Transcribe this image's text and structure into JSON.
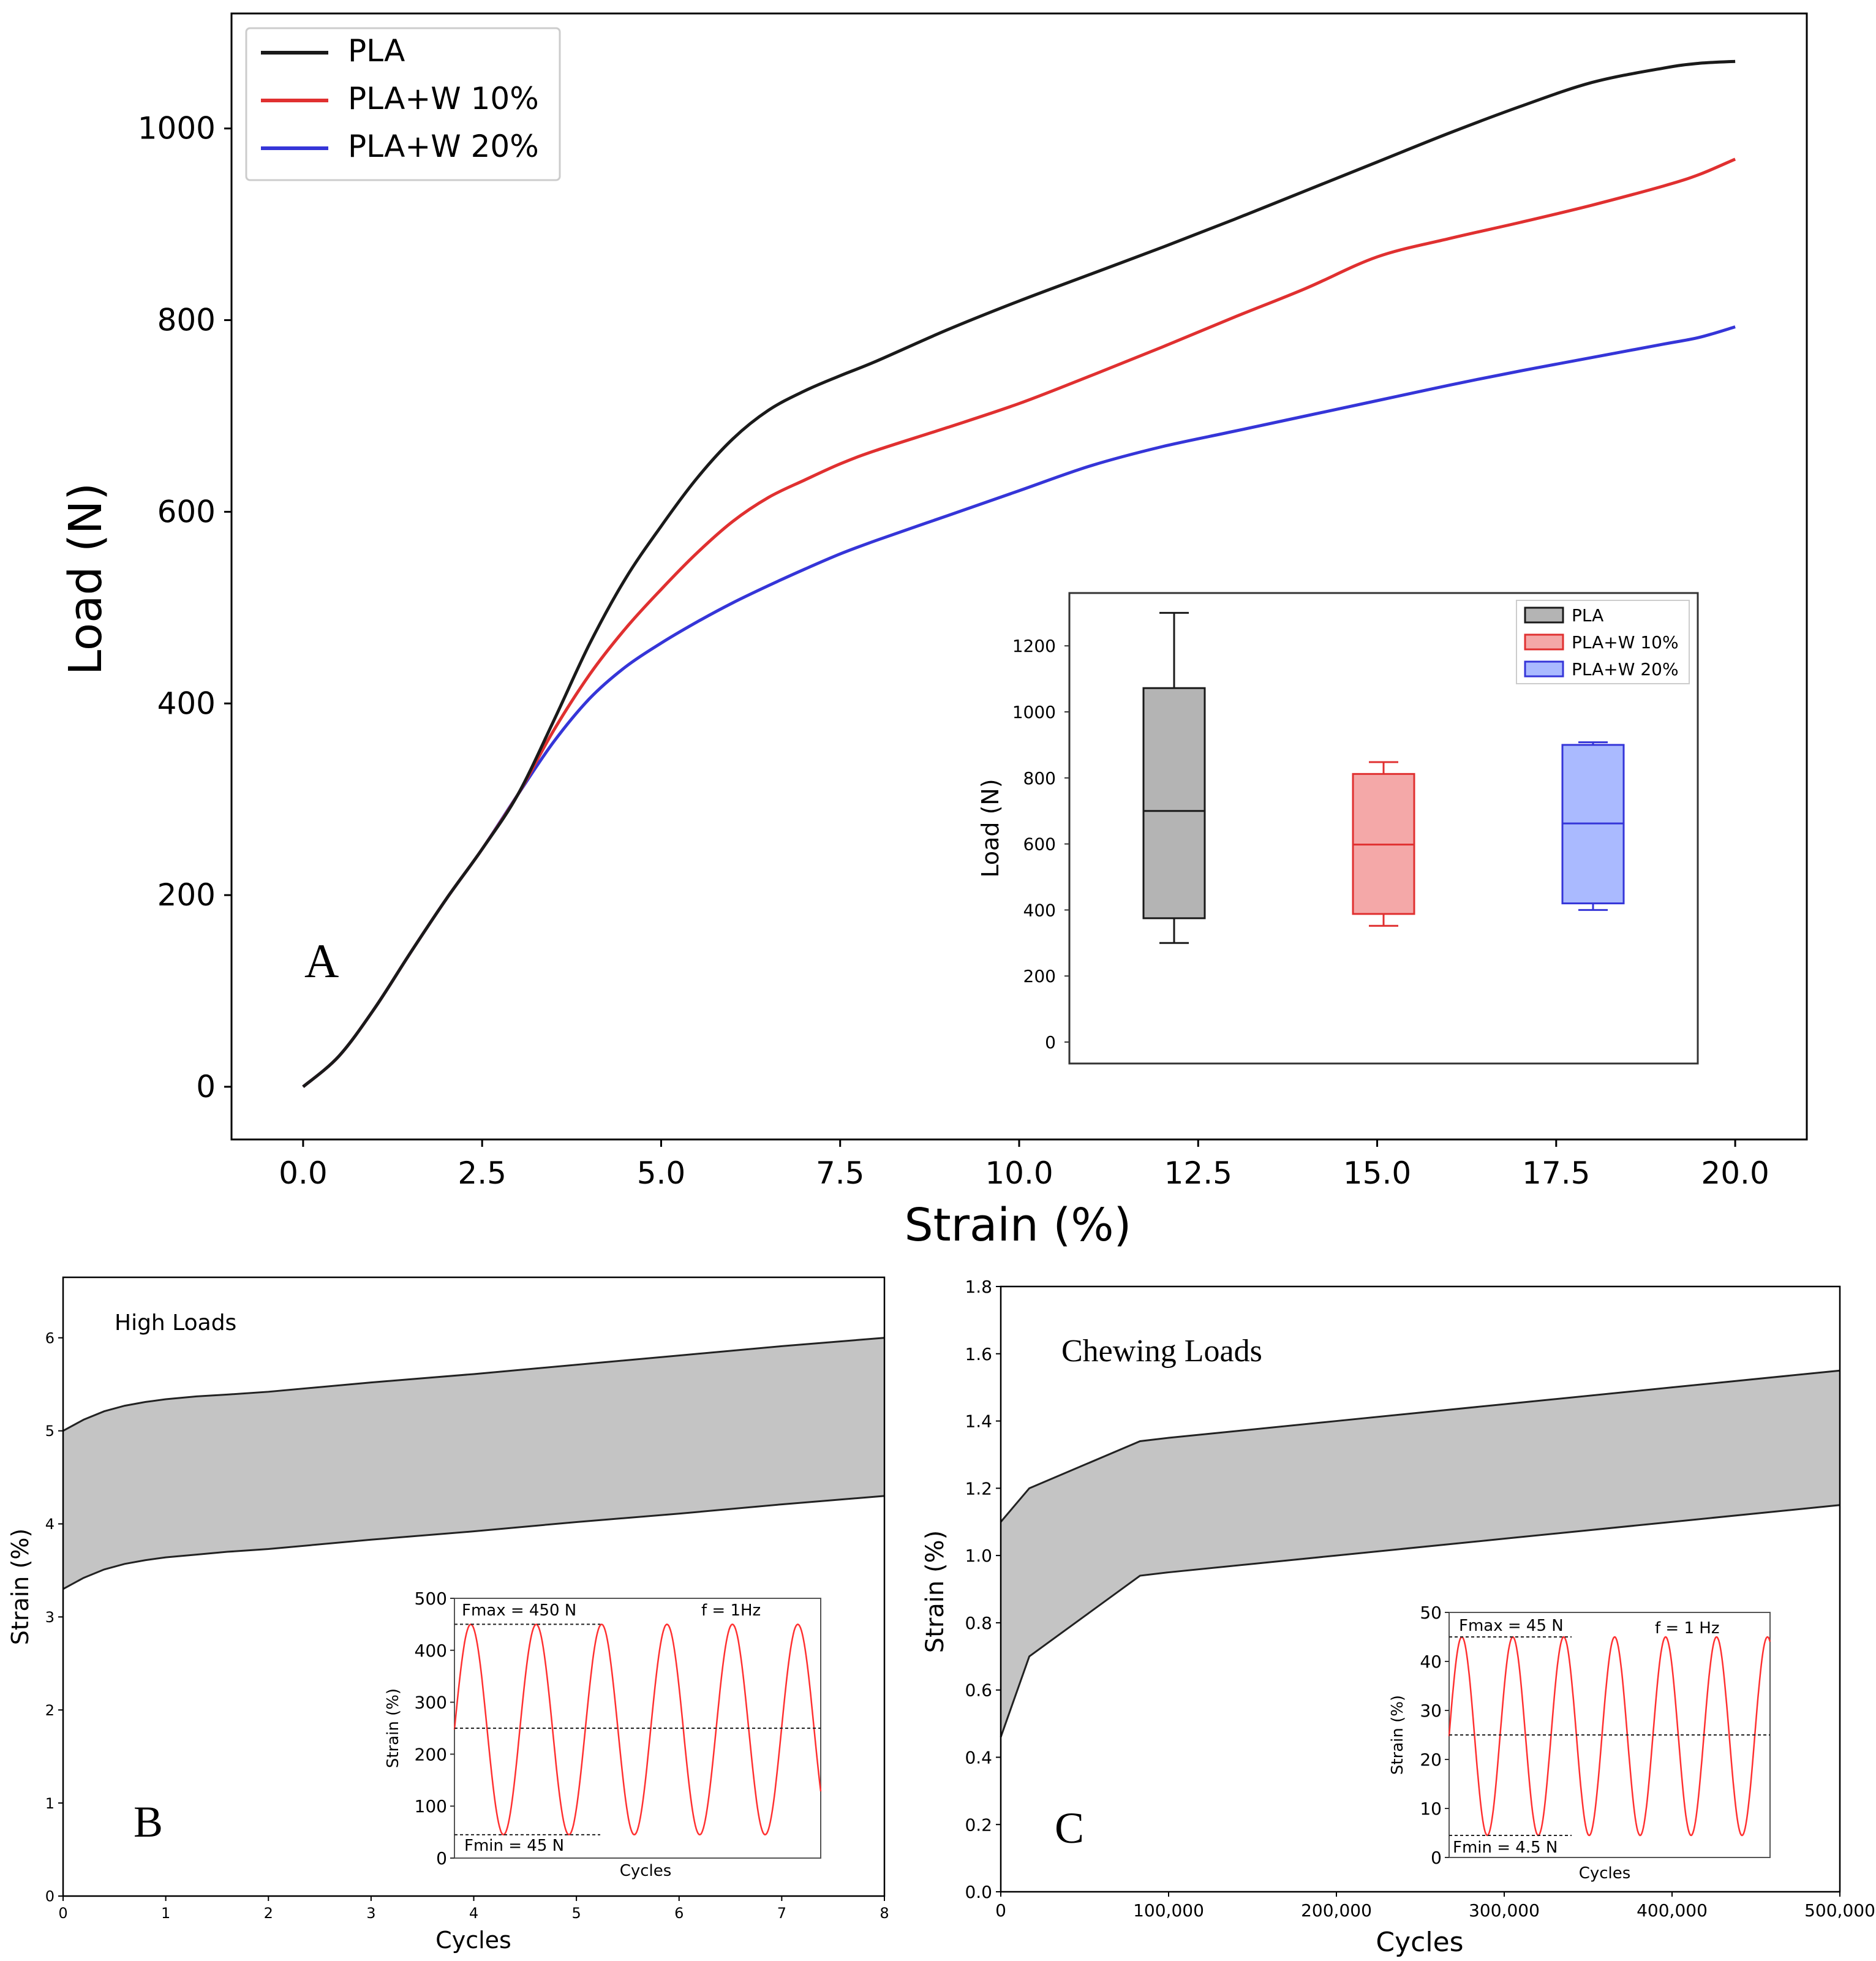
{
  "colors": {
    "pla": "#1a1a1a",
    "w10": "#e03030",
    "w20": "#3535d8",
    "band": "#c4c4c4",
    "sine": "#ff3030",
    "box_pla": "#b4b4b4",
    "box_w10": "#f4a8a8",
    "box_w20": "#aabaff"
  },
  "panel_labels": {
    "a": "A",
    "b": "B",
    "c": "C"
  },
  "chart_data": [
    {
      "id": "A",
      "type": "line",
      "xlabel": "Strain (%)",
      "ylabel": "Load (N)",
      "xlim": [
        -1.0,
        21.0
      ],
      "ylim": [
        -55,
        1120
      ],
      "xticks": [
        0.0,
        2.5,
        5.0,
        7.5,
        10.0,
        12.5,
        15.0,
        17.5,
        20.0
      ],
      "xtick_labels": [
        "0.0",
        "2.5",
        "5.0",
        "7.5",
        "10.0",
        "12.5",
        "15.0",
        "17.5",
        "20.0"
      ],
      "yticks": [
        0,
        200,
        400,
        600,
        800,
        1000
      ],
      "ytick_labels": [
        "0",
        "200",
        "400",
        "600",
        "800",
        "1000"
      ],
      "legend": "top-left",
      "series": [
        {
          "name": "PLA",
          "color_key": "pla",
          "x": [
            0,
            0.5,
            1,
            1.5,
            2,
            2.5,
            3,
            3.5,
            4,
            4.5,
            5,
            5.5,
            6,
            6.5,
            7,
            7.5,
            8,
            9,
            10,
            11,
            12,
            13,
            14,
            15,
            16,
            17,
            18,
            19,
            19.5,
            20
          ],
          "y": [
            0,
            32,
            82,
            140,
            196,
            248,
            305,
            382,
            462,
            530,
            585,
            635,
            676,
            706,
            726,
            742,
            757,
            790,
            820,
            848,
            876,
            905,
            935,
            965,
            995,
            1023,
            1048,
            1063,
            1068,
            1070
          ]
        },
        {
          "name": "PLA+W 10%",
          "color_key": "w10",
          "x": [
            0,
            0.5,
            1,
            1.5,
            2,
            2.5,
            3,
            3.5,
            4,
            4.5,
            5,
            5.5,
            6,
            6.5,
            7,
            7.5,
            8,
            9,
            10,
            11,
            12,
            13,
            14,
            15,
            16,
            17,
            18,
            19,
            19.5,
            20
          ],
          "y": [
            0,
            32,
            82,
            140,
            196,
            248,
            305,
            372,
            430,
            478,
            519,
            557,
            590,
            615,
            633,
            650,
            664,
            688,
            713,
            742,
            772,
            803,
            833,
            866,
            885,
            902,
            920,
            940,
            952,
            968
          ]
        },
        {
          "name": "PLA+W 20%",
          "color_key": "w20",
          "x": [
            0,
            0.5,
            1,
            1.5,
            2,
            2.5,
            3,
            3.5,
            4,
            4.5,
            5,
            5.5,
            6,
            6.5,
            7,
            7.5,
            8,
            9,
            10,
            11,
            12,
            13,
            14,
            15,
            16,
            17,
            18,
            19,
            19.5,
            20
          ],
          "y": [
            0,
            32,
            82,
            140,
            196,
            248,
            305,
            360,
            405,
            438,
            463,
            485,
            505,
            523,
            540,
            556,
            570,
            596,
            622,
            648,
            668,
            684,
            700,
            716,
            732,
            747,
            761,
            775,
            782,
            793
          ]
        }
      ]
    },
    {
      "id": "A-inset",
      "type": "box",
      "ylabel": "Load (N)",
      "xlim": [
        0.5,
        3.5
      ],
      "ylim": [
        -65,
        1360
      ],
      "yticks": [
        0,
        200,
        400,
        600,
        800,
        1000,
        1200
      ],
      "ytick_labels": [
        "0",
        "200",
        "400",
        "600",
        "800",
        "1000",
        "1200"
      ],
      "legend": "top-right",
      "boxes": [
        {
          "name": "PLA",
          "color_key": "pla",
          "fill_key": "box_pla",
          "whisker_low": 300,
          "q1": 375,
          "median": 700,
          "q3": 1072,
          "whisker_high": 1300
        },
        {
          "name": "PLA+W 10%",
          "color_key": "w10",
          "fill_key": "box_w10",
          "whisker_low": 352,
          "q1": 388,
          "median": 598,
          "q3": 812,
          "whisker_high": 848
        },
        {
          "name": "PLA+W 20%",
          "color_key": "w20",
          "fill_key": "box_w20",
          "whisker_low": 400,
          "q1": 420,
          "median": 662,
          "q3": 900,
          "whisker_high": 908
        }
      ]
    },
    {
      "id": "B",
      "type": "area",
      "title": "High Loads",
      "xlabel": "Cycles",
      "ylabel": "Strain (%)",
      "xlim": [
        0,
        8
      ],
      "ylim": [
        0,
        6.65
      ],
      "xticks": [
        0,
        1,
        2,
        3,
        4,
        5,
        6,
        7,
        8
      ],
      "xtick_labels": [
        "0",
        "1",
        "2",
        "3",
        "4",
        "5",
        "6",
        "7",
        "8"
      ],
      "yticks": [
        0,
        1,
        2,
        3,
        4,
        5,
        6
      ],
      "ytick_labels": [
        "0",
        "1",
        "2",
        "3",
        "4",
        "5",
        "6"
      ],
      "upper": {
        "x": [
          0,
          0.2,
          0.4,
          0.6,
          0.8,
          1,
          1.3,
          1.6,
          2,
          3,
          4,
          5,
          6,
          7,
          8
        ],
        "y": [
          5.0,
          5.12,
          5.21,
          5.27,
          5.31,
          5.34,
          5.37,
          5.39,
          5.42,
          5.52,
          5.61,
          5.71,
          5.81,
          5.91,
          6.0
        ]
      },
      "lower": {
        "x": [
          0,
          0.2,
          0.4,
          0.6,
          0.8,
          1,
          1.3,
          1.6,
          2,
          3,
          4,
          5,
          6,
          7,
          8
        ],
        "y": [
          3.3,
          3.42,
          3.51,
          3.57,
          3.61,
          3.64,
          3.67,
          3.7,
          3.73,
          3.83,
          3.92,
          4.02,
          4.11,
          4.21,
          4.3
        ]
      }
    },
    {
      "id": "B-inset",
      "type": "line",
      "xlabel": "Cycles",
      "ylabel": "Strain (%)",
      "ylim": [
        0,
        500
      ],
      "yticks": [
        0,
        100,
        200,
        300,
        400,
        500
      ],
      "ytick_labels": [
        "0",
        "100",
        "200",
        "300",
        "400",
        "500"
      ],
      "signal": {
        "fmin": 45,
        "fmax": 450,
        "cycles": 5.6,
        "start_phase": 0.25
      },
      "reference_lines": [
        250
      ],
      "annotations": {
        "fmax": "Fmax = 450 N",
        "fmin": "Fmin = 45 N",
        "freq": "f = 1Hz"
      }
    },
    {
      "id": "C",
      "type": "area",
      "title": "Chewing Loads",
      "xlabel": "Cycles",
      "ylabel": "Strain (%)",
      "xlim": [
        0,
        500000
      ],
      "ylim": [
        0,
        1.8
      ],
      "xticks": [
        0,
        100000,
        200000,
        300000,
        400000,
        500000
      ],
      "xtick_labels": [
        "0",
        "100,000",
        "200,000",
        "300,000",
        "400,000",
        "500,000"
      ],
      "yticks": [
        0.0,
        0.2,
        0.4,
        0.6,
        0.8,
        1.0,
        1.2,
        1.4,
        1.6,
        1.8
      ],
      "ytick_labels": [
        "0.0",
        "0.2",
        "0.4",
        "0.6",
        "0.8",
        "1.0",
        "1.2",
        "1.4",
        "1.6",
        "1.8"
      ],
      "upper": {
        "x": [
          0,
          17000,
          50000,
          83000,
          100000,
          200000,
          300000,
          400000,
          500000
        ],
        "y": [
          1.1,
          1.2,
          1.27,
          1.34,
          1.35,
          1.4,
          1.45,
          1.5,
          1.55
        ]
      },
      "lower": {
        "x": [
          0,
          17000,
          50000,
          83000,
          100000,
          200000,
          300000,
          400000,
          500000
        ],
        "y": [
          0.46,
          0.7,
          0.82,
          0.94,
          0.95,
          1.0,
          1.05,
          1.1,
          1.15
        ]
      }
    },
    {
      "id": "C-inset",
      "type": "line",
      "xlabel": "Cycles",
      "ylabel": "Strain (%)",
      "ylim": [
        0,
        50
      ],
      "yticks": [
        0,
        10,
        20,
        30,
        40,
        50
      ],
      "ytick_labels": [
        "0",
        "10",
        "20",
        "30",
        "40",
        "50"
      ],
      "signal": {
        "fmin": 4.5,
        "fmax": 45,
        "cycles": 6.3,
        "start_phase": 0.5
      },
      "reference_lines": [
        25
      ],
      "annotations": {
        "fmax": "Fmax = 45 N",
        "fmin": "Fmin = 4.5 N",
        "freq": "f = 1 Hz"
      }
    }
  ]
}
